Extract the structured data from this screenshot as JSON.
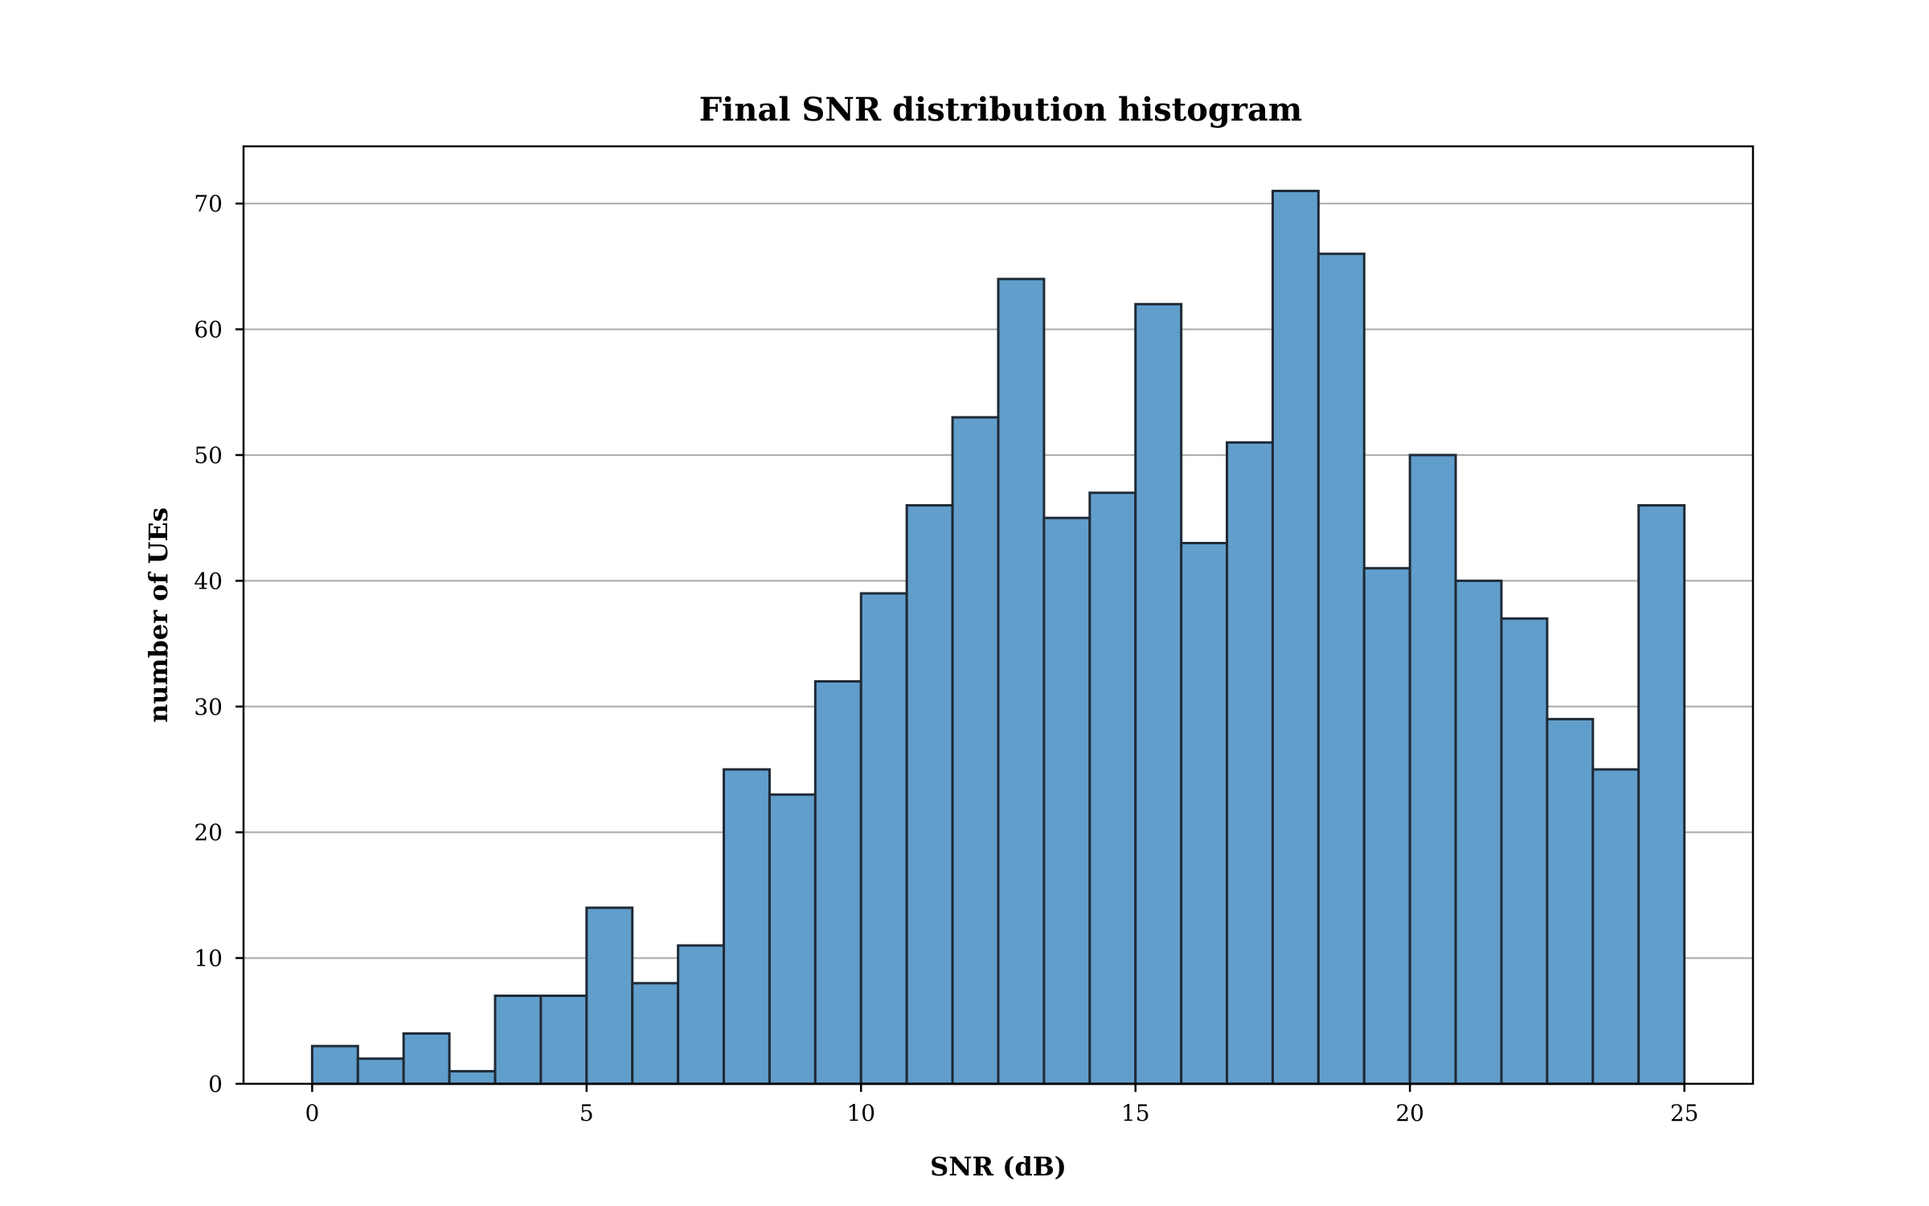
{
  "chart_data": {
    "type": "bar",
    "title": "Final SNR distribution histogram",
    "xlabel": "SNR (dB)",
    "ylabel": "number of UEs",
    "xlim": [
      -1.25,
      26.25
    ],
    "ylim": [
      0,
      74.55
    ],
    "xticks": [
      0,
      5,
      10,
      15,
      20,
      25
    ],
    "yticks": [
      0,
      10,
      20,
      30,
      40,
      50,
      60,
      70
    ],
    "bin_start": 0,
    "bin_end": 25,
    "values": [
      3,
      2,
      4,
      1,
      7,
      7,
      14,
      8,
      11,
      25,
      23,
      32,
      39,
      46,
      53,
      64,
      45,
      47,
      62,
      43,
      51,
      71,
      66,
      41,
      50,
      40,
      37,
      29,
      25,
      46
    ],
    "grid": "y",
    "colors": {
      "bar_fill": "#619ecb",
      "bar_edge": "#1f2a36",
      "grid": "#b0b0b0"
    }
  }
}
